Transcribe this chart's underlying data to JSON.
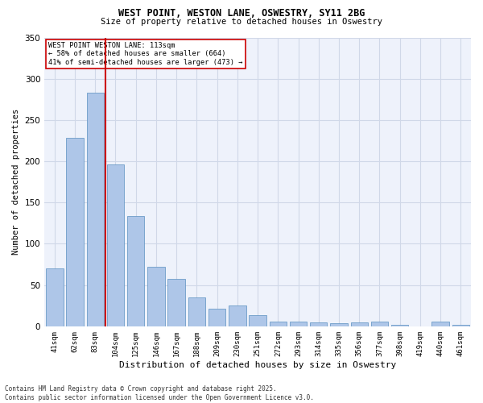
{
  "title_line1": "WEST POINT, WESTON LANE, OSWESTRY, SY11 2BG",
  "title_line2": "Size of property relative to detached houses in Oswestry",
  "xlabel": "Distribution of detached houses by size in Oswestry",
  "ylabel": "Number of detached properties",
  "categories": [
    "41sqm",
    "62sqm",
    "83sqm",
    "104sqm",
    "125sqm",
    "146sqm",
    "167sqm",
    "188sqm",
    "209sqm",
    "230sqm",
    "251sqm",
    "272sqm",
    "293sqm",
    "314sqm",
    "335sqm",
    "356sqm",
    "377sqm",
    "398sqm",
    "419sqm",
    "440sqm",
    "461sqm"
  ],
  "values": [
    70,
    228,
    283,
    196,
    134,
    72,
    57,
    35,
    21,
    25,
    14,
    6,
    6,
    5,
    4,
    5,
    6,
    2,
    0,
    6,
    2
  ],
  "bar_color": "#aec6e8",
  "bar_edge_color": "#5a8fc0",
  "grid_color": "#d0d8e8",
  "bg_color": "#eef2fb",
  "vline_x_index": 3,
  "vline_color": "#cc0000",
  "annotation_text": "WEST POINT WESTON LANE: 113sqm\n← 58% of detached houses are smaller (664)\n41% of semi-detached houses are larger (473) →",
  "annotation_box_color": "#cc0000",
  "ylim": [
    0,
    350
  ],
  "yticks": [
    0,
    50,
    100,
    150,
    200,
    250,
    300,
    350
  ],
  "footer_line1": "Contains HM Land Registry data © Crown copyright and database right 2025.",
  "footer_line2": "Contains public sector information licensed under the Open Government Licence v3.0."
}
